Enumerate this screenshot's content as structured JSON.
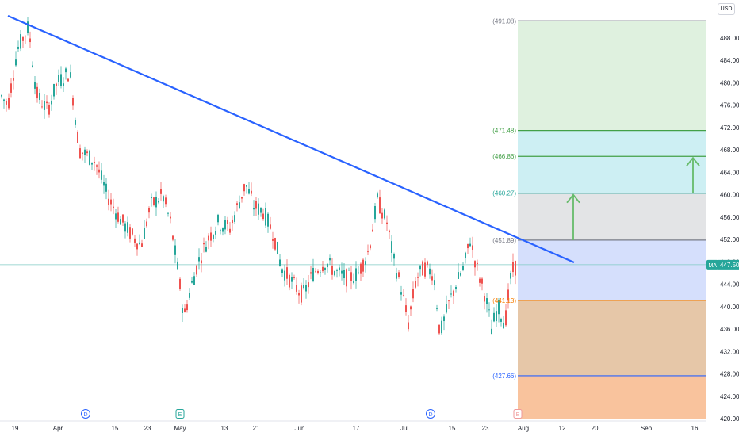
{
  "currency_button": "USD",
  "price_axis": {
    "ticks": [
      "488.00",
      "484.00",
      "480.00",
      "476.00",
      "472.00",
      "468.00",
      "464.00",
      "460.00",
      "456.00",
      "452.00",
      "448.00",
      "444.00",
      "440.00",
      "436.00",
      "432.00",
      "428.00",
      "424.00",
      "420.00"
    ],
    "current_price": "447.50",
    "ma_label": "MA"
  },
  "time_axis": [
    "19",
    "Apr",
    "15",
    "23",
    "May",
    "13",
    "21",
    "Jun",
    "17",
    "Jul",
    "15",
    "23",
    "Aug",
    "12",
    "20",
    "Sep",
    "16"
  ],
  "event_markers": [
    "D",
    "E",
    "D",
    "E"
  ],
  "fib_levels": [
    "(491.08)",
    "(471.48)",
    "(466.86)",
    "(460.27)",
    "(451.89)",
    "(441.13)",
    "(427.66)"
  ],
  "colors": {
    "trendline": "#2962ff",
    "zone_green": "#dff1df",
    "zone_cyan": "#cdeff3",
    "zone_gray": "#e3e4e6",
    "zone_blue": "#d5dffc",
    "zone_orange": "#e6c7a8",
    "zone_peach": "#f9c39d",
    "arrow": "#66bb6a",
    "candle_up": "#26a69a",
    "candle_down": "#ef5350"
  },
  "chart_data": {
    "type": "candlestick",
    "y_range": [
      420,
      492
    ],
    "levels": [
      491.08,
      471.48,
      466.86,
      460.27,
      451.89,
      441.13,
      427.66
    ],
    "current_price": 447.5,
    "x_ticks": [
      "19",
      "Apr",
      "15",
      "23",
      "May",
      "13",
      "21",
      "Jun",
      "17",
      "Jul",
      "15",
      "23",
      "Aug",
      "12",
      "20",
      "Sep",
      "16"
    ]
  }
}
